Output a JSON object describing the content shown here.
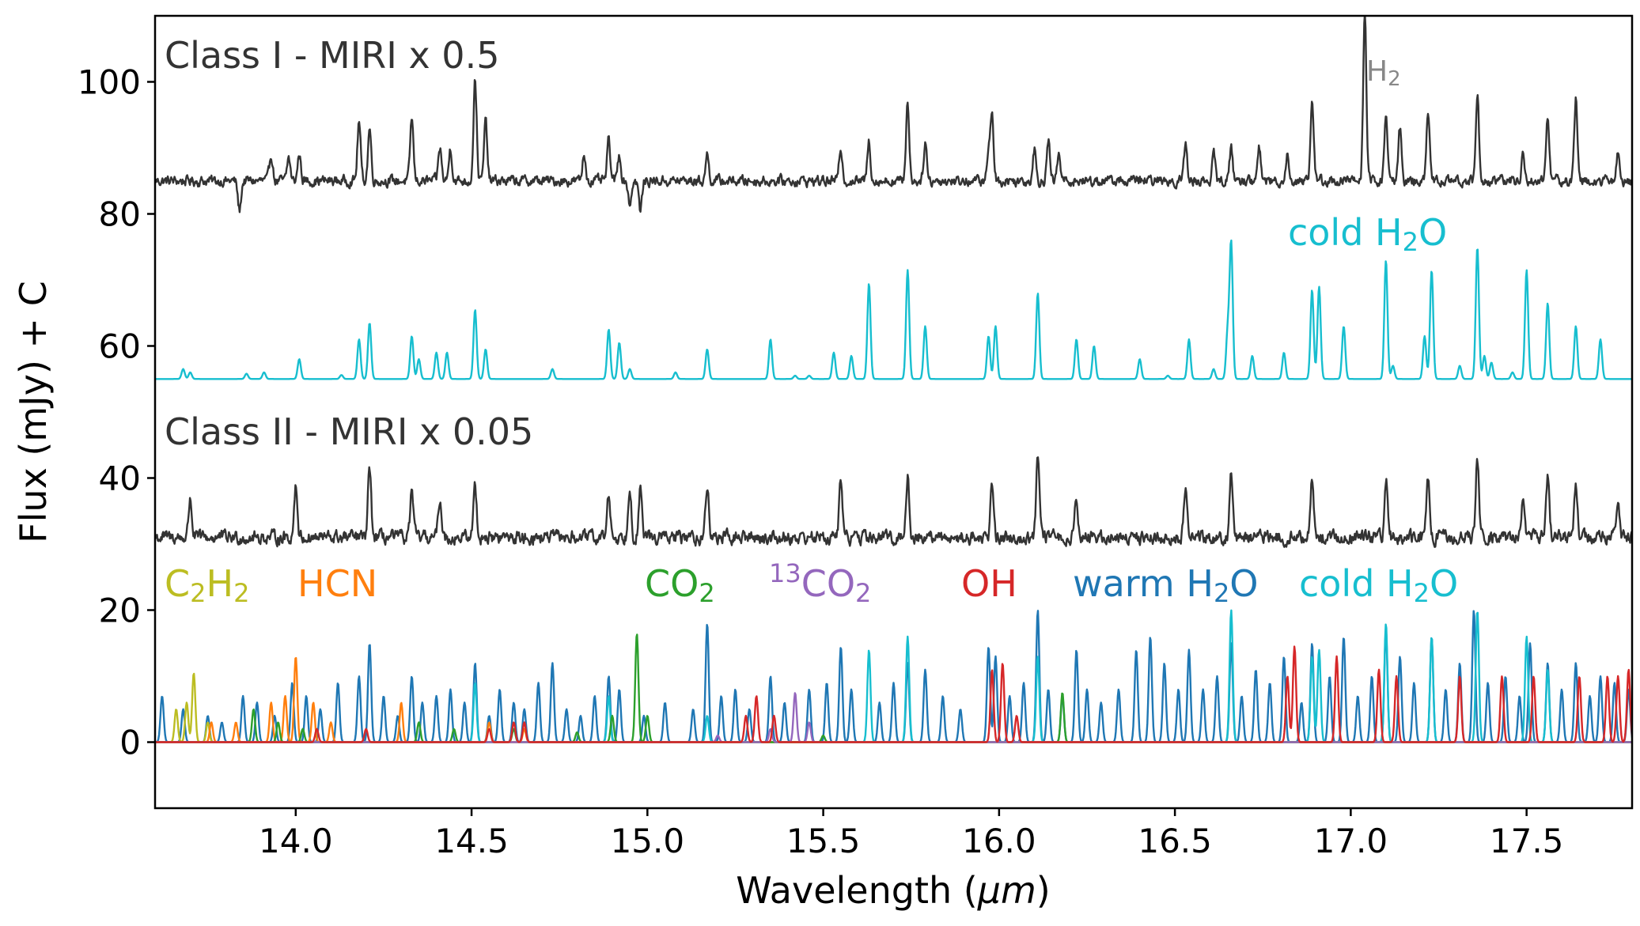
{
  "chart_data": {
    "type": "line",
    "xlabel_main": "Wavelength (",
    "xlabel_unit": "μm",
    "xlabel_close": ")",
    "ylabel": "Flux (mJy) + C",
    "xlim": [
      13.6,
      17.8
    ],
    "ylim": [
      -10,
      110
    ],
    "x_ticks": [
      "14.0",
      "14.5",
      "15.0",
      "15.5",
      "16.0",
      "16.5",
      "17.0",
      "17.5"
    ],
    "y_ticks": [
      "0",
      "20",
      "40",
      "60",
      "80",
      "100"
    ],
    "annotations": {
      "class1": "Class I - MIRI x 0.5",
      "class2": "Class II - MIRI x 0.05",
      "h2_main": "H",
      "h2_sub": "2",
      "cold_h2o_upper_main": "cold H",
      "cold_h2o_upper_sub": "2",
      "cold_h2o_upper_end": "O"
    },
    "molecules": [
      {
        "main": "C",
        "sub1": "2",
        "mid": "H",
        "sub2": "2",
        "color": "#bcbd22"
      },
      {
        "main": "HCN",
        "color": "#ff7f0e"
      },
      {
        "main": "CO",
        "sub1": "2",
        "color": "#2ca02c"
      },
      {
        "sup": "13",
        "main": "CO",
        "sub1": "2",
        "color": "#9467bd"
      },
      {
        "main": "OH",
        "color": "#d62728"
      },
      {
        "main": "warm H",
        "sub1": "2",
        "end": "O",
        "color": "#1f77b4"
      },
      {
        "main": "cold H",
        "sub1": "2",
        "end": "O",
        "color": "#17becf"
      }
    ],
    "series": [
      {
        "name": "Class I - MIRI x 0.5",
        "color": "#333333",
        "baseline": 85,
        "noise": 1.4,
        "lines": [
          [
            13.84,
            -4.5
          ],
          [
            13.93,
            4
          ],
          [
            13.98,
            3.5
          ],
          [
            14.01,
            4
          ],
          [
            14.18,
            9
          ],
          [
            14.21,
            8
          ],
          [
            14.33,
            9.5
          ],
          [
            14.41,
            5
          ],
          [
            14.44,
            5
          ],
          [
            14.51,
            15.5
          ],
          [
            14.54,
            9
          ],
          [
            14.82,
            4
          ],
          [
            14.89,
            6
          ],
          [
            14.92,
            4
          ],
          [
            14.95,
            -3.5
          ],
          [
            14.98,
            -4.5
          ],
          [
            15.17,
            4
          ],
          [
            15.55,
            5
          ],
          [
            15.63,
            6
          ],
          [
            15.74,
            12
          ],
          [
            15.79,
            6
          ],
          [
            15.97,
            4
          ],
          [
            15.98,
            10
          ],
          [
            16.1,
            5
          ],
          [
            16.14,
            6
          ],
          [
            16.17,
            4
          ],
          [
            16.53,
            5.5
          ],
          [
            16.61,
            4
          ],
          [
            16.66,
            5
          ],
          [
            16.74,
            5
          ],
          [
            16.82,
            4
          ],
          [
            16.89,
            12.5
          ],
          [
            17.04,
            25
          ],
          [
            17.1,
            10
          ],
          [
            17.14,
            8
          ],
          [
            17.22,
            10
          ],
          [
            17.36,
            13
          ],
          [
            17.49,
            4
          ],
          [
            17.56,
            10
          ],
          [
            17.64,
            12.5
          ],
          [
            17.76,
            4
          ]
        ]
      },
      {
        "name": "cold H2O model",
        "color": "#17becf",
        "baseline": 55,
        "noise": 0,
        "lines": [
          [
            13.68,
            1.5
          ],
          [
            13.7,
            1
          ],
          [
            13.86,
            0.8
          ],
          [
            13.91,
            1
          ],
          [
            14.01,
            3
          ],
          [
            14.13,
            0.6
          ],
          [
            14.18,
            6
          ],
          [
            14.21,
            8.5
          ],
          [
            14.33,
            6.5
          ],
          [
            14.35,
            3
          ],
          [
            14.4,
            4
          ],
          [
            14.43,
            4
          ],
          [
            14.51,
            10.5
          ],
          [
            14.54,
            4.5
          ],
          [
            14.73,
            1.5
          ],
          [
            14.89,
            7.5
          ],
          [
            14.92,
            5.5
          ],
          [
            14.95,
            1.5
          ],
          [
            15.08,
            1
          ],
          [
            15.17,
            4.5
          ],
          [
            15.35,
            6
          ],
          [
            15.42,
            0.5
          ],
          [
            15.46,
            0.5
          ],
          [
            15.53,
            4
          ],
          [
            15.58,
            3.5
          ],
          [
            15.63,
            14.5
          ],
          [
            15.74,
            16.5
          ],
          [
            15.79,
            8
          ],
          [
            15.97,
            6.5
          ],
          [
            15.99,
            8
          ],
          [
            16.11,
            13
          ],
          [
            16.22,
            6
          ],
          [
            16.27,
            5
          ],
          [
            16.4,
            3
          ],
          [
            16.48,
            0.5
          ],
          [
            16.54,
            6
          ],
          [
            16.61,
            1.5
          ],
          [
            16.65,
            7
          ],
          [
            16.66,
            20.5
          ],
          [
            16.72,
            3.5
          ],
          [
            16.81,
            4
          ],
          [
            16.89,
            13.5
          ],
          [
            16.91,
            14
          ],
          [
            16.98,
            8
          ],
          [
            17.1,
            18
          ],
          [
            17.12,
            2
          ],
          [
            17.21,
            6.5
          ],
          [
            17.23,
            16.5
          ],
          [
            17.31,
            2
          ],
          [
            17.36,
            20
          ],
          [
            17.38,
            3.5
          ],
          [
            17.4,
            2.5
          ],
          [
            17.46,
            1
          ],
          [
            17.5,
            16.5
          ],
          [
            17.56,
            11.5
          ],
          [
            17.64,
            8
          ],
          [
            17.71,
            6
          ]
        ]
      },
      {
        "name": "Class II - MIRI x 0.05",
        "color": "#333333",
        "baseline": 31,
        "noise": 1.8,
        "lines": [
          [
            13.7,
            6
          ],
          [
            14.0,
            8
          ],
          [
            14.21,
            10.5
          ],
          [
            14.33,
            7
          ],
          [
            14.41,
            6
          ],
          [
            14.51,
            8
          ],
          [
            14.89,
            6.5
          ],
          [
            14.95,
            8
          ],
          [
            14.98,
            7
          ],
          [
            15.17,
            8
          ],
          [
            15.55,
            9
          ],
          [
            15.74,
            9
          ],
          [
            15.98,
            8
          ],
          [
            16.11,
            12.5
          ],
          [
            16.22,
            6
          ],
          [
            16.53,
            8
          ],
          [
            16.66,
            10
          ],
          [
            16.89,
            9
          ],
          [
            17.1,
            9
          ],
          [
            17.22,
            9
          ],
          [
            17.36,
            12
          ],
          [
            17.49,
            7
          ],
          [
            17.56,
            9
          ],
          [
            17.64,
            8
          ],
          [
            17.76,
            6
          ]
        ]
      },
      {
        "name": "warm H2O",
        "color": "#1f77b4",
        "baseline": 0,
        "noise": 0,
        "lines": [
          [
            13.62,
            7
          ],
          [
            13.68,
            5
          ],
          [
            13.75,
            4
          ],
          [
            13.79,
            3
          ],
          [
            13.85,
            7
          ],
          [
            13.89,
            6
          ],
          [
            13.94,
            4
          ],
          [
            13.99,
            9
          ],
          [
            14.03,
            7
          ],
          [
            14.07,
            5
          ],
          [
            14.12,
            9
          ],
          [
            14.18,
            10
          ],
          [
            14.21,
            15
          ],
          [
            14.25,
            7
          ],
          [
            14.29,
            4
          ],
          [
            14.33,
            10
          ],
          [
            14.36,
            6
          ],
          [
            14.4,
            7
          ],
          [
            14.44,
            8
          ],
          [
            14.48,
            6
          ],
          [
            14.51,
            12
          ],
          [
            14.55,
            4
          ],
          [
            14.58,
            8
          ],
          [
            14.62,
            6
          ],
          [
            14.65,
            5
          ],
          [
            14.69,
            9
          ],
          [
            14.73,
            12
          ],
          [
            14.77,
            5
          ],
          [
            14.81,
            4
          ],
          [
            14.85,
            7
          ],
          [
            14.89,
            10
          ],
          [
            14.92,
            8
          ],
          [
            14.99,
            4
          ],
          [
            15.05,
            6
          ],
          [
            15.13,
            5
          ],
          [
            15.17,
            18
          ],
          [
            15.21,
            7
          ],
          [
            15.25,
            8
          ],
          [
            15.29,
            5
          ],
          [
            15.35,
            10
          ],
          [
            15.39,
            6
          ],
          [
            15.46,
            8
          ],
          [
            15.51,
            9
          ],
          [
            15.55,
            14.5
          ],
          [
            15.58,
            8
          ],
          [
            15.66,
            6
          ],
          [
            15.7,
            9
          ],
          [
            15.74,
            12
          ],
          [
            15.79,
            11
          ],
          [
            15.84,
            7
          ],
          [
            15.89,
            5
          ],
          [
            15.97,
            14.5
          ],
          [
            15.99,
            13
          ],
          [
            16.03,
            7
          ],
          [
            16.07,
            9
          ],
          [
            16.11,
            20
          ],
          [
            16.14,
            8
          ],
          [
            16.18,
            7
          ],
          [
            16.22,
            14
          ],
          [
            16.25,
            8
          ],
          [
            16.29,
            6
          ],
          [
            16.34,
            8
          ],
          [
            16.39,
            14
          ],
          [
            16.43,
            16
          ],
          [
            16.47,
            12
          ],
          [
            16.51,
            8
          ],
          [
            16.54,
            14
          ],
          [
            16.58,
            8
          ],
          [
            16.62,
            10
          ],
          [
            16.66,
            15
          ],
          [
            16.69,
            7
          ],
          [
            16.73,
            11
          ],
          [
            16.77,
            9
          ],
          [
            16.81,
            13
          ],
          [
            16.86,
            6
          ],
          [
            16.89,
            15
          ],
          [
            16.94,
            10
          ],
          [
            16.98,
            16
          ],
          [
            17.02,
            7
          ],
          [
            17.06,
            10
          ],
          [
            17.1,
            17
          ],
          [
            17.14,
            13
          ],
          [
            17.18,
            9
          ],
          [
            17.23,
            16
          ],
          [
            17.27,
            8
          ],
          [
            17.31,
            12
          ],
          [
            17.35,
            20
          ],
          [
            17.39,
            9
          ],
          [
            17.44,
            10
          ],
          [
            17.48,
            7
          ],
          [
            17.51,
            15
          ],
          [
            17.56,
            12
          ],
          [
            17.6,
            8
          ],
          [
            17.64,
            12
          ],
          [
            17.68,
            7
          ],
          [
            17.71,
            10
          ],
          [
            17.75,
            9
          ],
          [
            17.79,
            8
          ]
        ]
      },
      {
        "name": "cold H2O",
        "color": "#17becf",
        "baseline": 0,
        "noise": 0,
        "lines": [
          [
            14.51,
            9
          ],
          [
            14.89,
            7
          ],
          [
            15.17,
            4
          ],
          [
            15.63,
            14
          ],
          [
            15.74,
            16
          ],
          [
            16.11,
            13
          ],
          [
            16.66,
            20
          ],
          [
            16.89,
            13
          ],
          [
            16.91,
            14
          ],
          [
            17.1,
            18
          ],
          [
            17.23,
            16
          ],
          [
            17.36,
            20
          ],
          [
            17.5,
            16
          ],
          [
            17.56,
            11
          ]
        ]
      },
      {
        "name": "C2H2",
        "color": "#bcbd22",
        "baseline": 0,
        "noise": 0,
        "lines": [
          [
            13.66,
            5
          ],
          [
            13.69,
            6
          ],
          [
            13.71,
            10.5
          ],
          [
            13.75,
            3
          ]
        ]
      },
      {
        "name": "HCN",
        "color": "#ff7f0e",
        "baseline": 0,
        "noise": 0,
        "lines": [
          [
            13.76,
            3
          ],
          [
            13.83,
            3
          ],
          [
            13.93,
            6
          ],
          [
            13.97,
            7
          ],
          [
            14.0,
            13
          ],
          [
            14.05,
            6
          ],
          [
            14.1,
            3
          ],
          [
            14.3,
            6
          ],
          [
            14.55,
            3
          ],
          [
            14.65,
            2
          ]
        ]
      },
      {
        "name": "CO2",
        "color": "#2ca02c",
        "baseline": 0,
        "noise": 0,
        "lines": [
          [
            13.88,
            5
          ],
          [
            13.95,
            3
          ],
          [
            14.02,
            2
          ],
          [
            14.35,
            3
          ],
          [
            14.45,
            2
          ],
          [
            14.62,
            2
          ],
          [
            14.8,
            1.5
          ],
          [
            14.9,
            4
          ],
          [
            14.97,
            16.5
          ],
          [
            15.0,
            4
          ],
          [
            15.5,
            1
          ],
          [
            16.18,
            7.5
          ]
        ]
      },
      {
        "name": "13CO2",
        "color": "#9467bd",
        "baseline": 0,
        "noise": 0,
        "lines": [
          [
            15.2,
            1
          ],
          [
            15.35,
            2
          ],
          [
            15.42,
            7.5
          ],
          [
            15.46,
            3
          ]
        ]
      },
      {
        "name": "OH",
        "color": "#d62728",
        "baseline": 0,
        "noise": 0,
        "lines": [
          [
            14.06,
            2
          ],
          [
            14.2,
            2
          ],
          [
            14.55,
            2
          ],
          [
            14.62,
            3
          ],
          [
            14.65,
            3
          ],
          [
            15.28,
            4
          ],
          [
            15.31,
            7
          ],
          [
            15.36,
            4
          ],
          [
            15.98,
            11
          ],
          [
            16.01,
            12
          ],
          [
            16.05,
            4
          ],
          [
            16.82,
            10
          ],
          [
            16.84,
            14.5
          ],
          [
            16.96,
            13
          ],
          [
            17.08,
            11
          ],
          [
            17.13,
            10
          ],
          [
            17.31,
            10
          ],
          [
            17.43,
            10
          ],
          [
            17.52,
            10
          ],
          [
            17.65,
            10
          ],
          [
            17.73,
            10
          ],
          [
            17.76,
            10
          ],
          [
            17.79,
            11
          ]
        ]
      }
    ]
  }
}
